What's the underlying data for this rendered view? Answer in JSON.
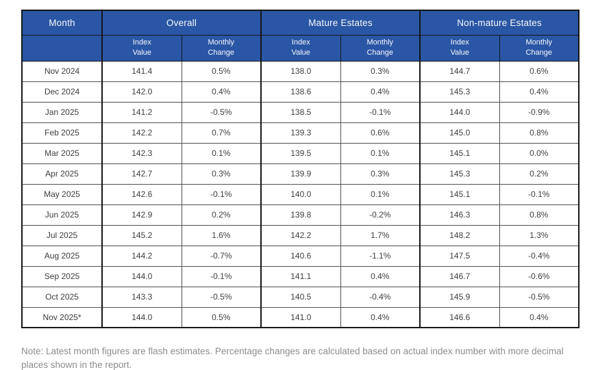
{
  "accent_color": "#2a56a5",
  "table": {
    "header": {
      "month_label": "Month",
      "groups": [
        {
          "label": "Overall"
        },
        {
          "label": "Mature Estates"
        },
        {
          "label": "Non-mature Estates"
        }
      ],
      "sub_index": "Index\nValue",
      "sub_change": "Monthly\nChange"
    },
    "rows": [
      {
        "month": "Nov 2024",
        "overall_index": "141.4",
        "overall_change": "0.5%",
        "mature_index": "138.0",
        "mature_change": "0.3%",
        "nonmature_index": "144.7",
        "nonmature_change": "0.6%"
      },
      {
        "month": "Dec 2024",
        "overall_index": "142.0",
        "overall_change": "0.4%",
        "mature_index": "138.6",
        "mature_change": "0.4%",
        "nonmature_index": "145.3",
        "nonmature_change": "0.4%"
      },
      {
        "month": "Jan 2025",
        "overall_index": "141.2",
        "overall_change": "-0.5%",
        "mature_index": "138.5",
        "mature_change": "-0.1%",
        "nonmature_index": "144.0",
        "nonmature_change": "-0.9%"
      },
      {
        "month": "Feb 2025",
        "overall_index": "142.2",
        "overall_change": "0.7%",
        "mature_index": "139.3",
        "mature_change": "0.6%",
        "nonmature_index": "145.0",
        "nonmature_change": "0.8%"
      },
      {
        "month": "Mar 2025",
        "overall_index": "142.3",
        "overall_change": "0.1%",
        "mature_index": "139.5",
        "mature_change": "0.1%",
        "nonmature_index": "145.1",
        "nonmature_change": "0.0%"
      },
      {
        "month": "Apr 2025",
        "overall_index": "142.7",
        "overall_change": "0.3%",
        "mature_index": "139.9",
        "mature_change": "0.3%",
        "nonmature_index": "145.3",
        "nonmature_change": "0.2%"
      },
      {
        "month": "May 2025",
        "overall_index": "142.6",
        "overall_change": "-0.1%",
        "mature_index": "140.0",
        "mature_change": "0.1%",
        "nonmature_index": "145.1",
        "nonmature_change": "-0.1%"
      },
      {
        "month": "Jun 2025",
        "overall_index": "142.9",
        "overall_change": "0.2%",
        "mature_index": "139.8",
        "mature_change": "-0.2%",
        "nonmature_index": "146.3",
        "nonmature_change": "0.8%"
      },
      {
        "month": "Jul 2025",
        "overall_index": "145.2",
        "overall_change": "1.6%",
        "mature_index": "142.2",
        "mature_change": "1.7%",
        "nonmature_index": "148.2",
        "nonmature_change": "1.3%"
      },
      {
        "month": "Aug 2025",
        "overall_index": "144.2",
        "overall_change": "-0.7%",
        "mature_index": "140.6",
        "mature_change": "-1.1%",
        "nonmature_index": "147.5",
        "nonmature_change": "-0.4%"
      },
      {
        "month": "Sep 2025",
        "overall_index": "144.0",
        "overall_change": "-0.1%",
        "mature_index": "141.1",
        "mature_change": "0.4%",
        "nonmature_index": "146.7",
        "nonmature_change": "-0.6%"
      },
      {
        "month": "Oct 2025",
        "overall_index": "143.3",
        "overall_change": "-0.5%",
        "mature_index": "140.5",
        "mature_change": "-0.4%",
        "nonmature_index": "145.9",
        "nonmature_change": "-0.5%"
      },
      {
        "month": "Nov 2025*",
        "overall_index": "144.0",
        "overall_change": "0.5%",
        "mature_index": "141.0",
        "mature_change": "0.4%",
        "nonmature_index": "146.6",
        "nonmature_change": "0.4%"
      }
    ]
  },
  "note": "Note: Latest month figures are flash estimates. Percentage changes are calculated based on actual index number with more decimal places shown in the report.",
  "chart_data": {
    "type": "table",
    "title": "",
    "categories": [
      "Nov 2024",
      "Dec 2024",
      "Jan 2025",
      "Feb 2025",
      "Mar 2025",
      "Apr 2025",
      "May 2025",
      "Jun 2025",
      "Jul 2025",
      "Aug 2025",
      "Sep 2025",
      "Oct 2025",
      "Nov 2025*"
    ],
    "series": [
      {
        "name": "Overall Index Value",
        "values": [
          141.4,
          142.0,
          141.2,
          142.2,
          142.3,
          142.7,
          142.6,
          142.9,
          145.2,
          144.2,
          144.0,
          143.3,
          144.0
        ]
      },
      {
        "name": "Overall Monthly Change (%)",
        "values": [
          0.5,
          0.4,
          -0.5,
          0.7,
          0.1,
          0.3,
          -0.1,
          0.2,
          1.6,
          -0.7,
          -0.1,
          -0.5,
          0.5
        ]
      },
      {
        "name": "Mature Estates Index Value",
        "values": [
          138.0,
          138.6,
          138.5,
          139.3,
          139.5,
          139.9,
          140.0,
          139.8,
          142.2,
          140.6,
          141.1,
          140.5,
          141.0
        ]
      },
      {
        "name": "Mature Estates Monthly Change (%)",
        "values": [
          0.3,
          0.4,
          -0.1,
          0.6,
          0.1,
          0.3,
          0.1,
          -0.2,
          1.7,
          -1.1,
          0.4,
          -0.4,
          0.4
        ]
      },
      {
        "name": "Non-mature Estates Index Value",
        "values": [
          144.7,
          145.3,
          144.0,
          145.0,
          145.1,
          145.3,
          145.1,
          146.3,
          148.2,
          147.5,
          146.7,
          145.9,
          146.6
        ]
      },
      {
        "name": "Non-mature Estates Monthly Change (%)",
        "values": [
          0.6,
          0.4,
          -0.9,
          0.8,
          0.0,
          0.2,
          -0.1,
          0.8,
          1.3,
          -0.4,
          -0.6,
          -0.5,
          0.4
        ]
      }
    ],
    "footnote": "Note: Latest month figures are flash estimates. Percentage changes are calculated based on actual index number with more decimal places shown in the report."
  }
}
